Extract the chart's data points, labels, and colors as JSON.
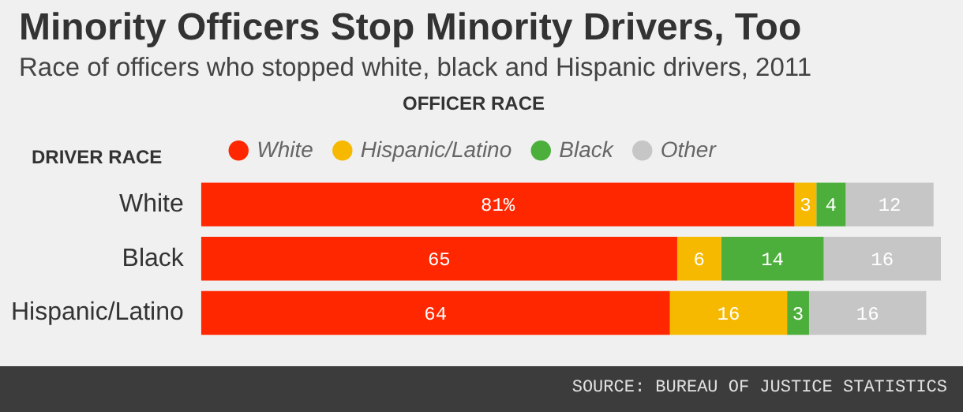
{
  "chart_data": {
    "type": "bar",
    "title": "Minority Officers Stop Minority Drivers, Too",
    "subtitle": "Race of officers who stopped white, black and Hispanic drivers, 2011",
    "ylabel": "DRIVER RACE",
    "legend_title": "OFFICER RACE",
    "orientation": "horizontal",
    "stacked": true,
    "legend": "top",
    "categories": [
      "White",
      "Black",
      "Hispanic/Latino"
    ],
    "series": [
      {
        "name": "White",
        "color": "#ff2700",
        "values": [
          81,
          65,
          64
        ],
        "value_labels": [
          "81%",
          "65",
          "64"
        ]
      },
      {
        "name": "Hispanic/Latino",
        "color": "#f6b900",
        "values": [
          3,
          6,
          16
        ],
        "value_labels": [
          "3",
          "6",
          "16"
        ]
      },
      {
        "name": "Black",
        "color": "#4caf3c",
        "values": [
          4,
          14,
          3
        ],
        "value_labels": [
          "4",
          "14",
          "3"
        ]
      },
      {
        "name": "Other",
        "color": "#c6c6c6",
        "values": [
          12,
          16,
          16
        ],
        "value_labels": [
          "12",
          "16",
          "16"
        ]
      }
    ],
    "annotations": [
      "SOURCE: BUREAU OF JUSTICE STATISTICS"
    ]
  }
}
